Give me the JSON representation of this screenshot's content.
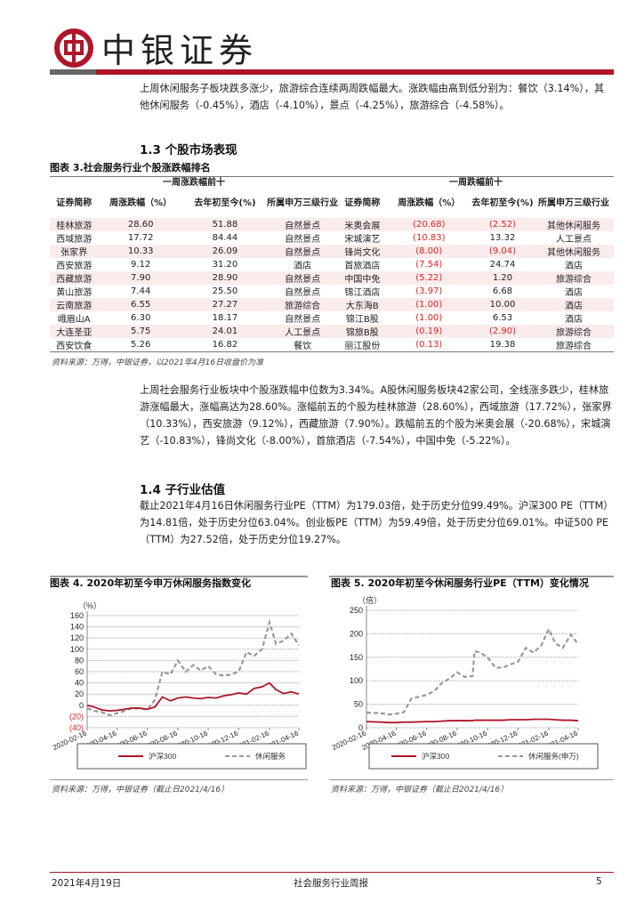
{
  "header": {
    "brand": "中银证券",
    "accent": "#b0162a"
  },
  "intro": "上周休闲服务子板块跌多涨少，旅游综合连续两周跌幅最大。涨跌幅由高到低分别为：餐饮（3.14%），其他休闲服务（-0.45%），酒店（-4.10%），景点（-4.25%），旅游综合（-4.58%）。",
  "section13": "1.3 个股市场表现",
  "table": {
    "caption": "图表 3.社会服务行业个股涨跌幅排名",
    "left_title": "一周涨跌幅前十",
    "right_title": "一周跌幅前十",
    "headers": [
      "证券简称",
      "周涨跌幅（%）",
      "去年初至今(%)",
      "所属申万三级行业"
    ],
    "left_rows": [
      [
        "桂林旅游",
        "28.60",
        "51.88",
        "自然景点"
      ],
      [
        "西域旅游",
        "17.72",
        "84.44",
        "自然景点"
      ],
      [
        "张家界",
        "10.33",
        "26.09",
        "自然景点"
      ],
      [
        "西安旅游",
        "9.12",
        "31.20",
        "酒店"
      ],
      [
        "西藏旅游",
        "7.90",
        "28.90",
        "自然景点"
      ],
      [
        "黄山旅游",
        "7.44",
        "25.50",
        "自然景点"
      ],
      [
        "云南旅游",
        "6.55",
        "27.27",
        "旅游综合"
      ],
      [
        "峨眉山A",
        "6.30",
        "18.17",
        "自然景点"
      ],
      [
        "大连圣亚",
        "5.75",
        "24.01",
        "人工景点"
      ],
      [
        "西安饮食",
        "5.26",
        "16.82",
        "餐饮"
      ]
    ],
    "right_rows": [
      [
        "米奥会展",
        "(20.68)",
        "(2.52)",
        "其他休闲服务"
      ],
      [
        "宋城演艺",
        "(10.83)",
        "13.32",
        "人工景点"
      ],
      [
        "锋尚文化",
        "(8.00)",
        "(9.04)",
        "其他休闲服务"
      ],
      [
        "首旅酒店",
        "(7.54)",
        "24.74",
        "酒店"
      ],
      [
        "中国中免",
        "(5.22)",
        "1.20",
        "旅游综合"
      ],
      [
        "锦江酒店",
        "(3.97)",
        "6.68",
        "酒店"
      ],
      [
        "大东海B",
        "(1.00)",
        "10.00",
        "酒店"
      ],
      [
        "锦江B股",
        "(1.00)",
        "6.53",
        "酒店"
      ],
      [
        "锦旅B股",
        "(0.19)",
        "(2.90)",
        "旅游综合"
      ],
      [
        "丽江股份",
        "(0.13)",
        "19.38",
        "旅游综合"
      ]
    ],
    "source": "资料来源：万得，中银证券，以2021年4月16日收盘价为准"
  },
  "para2": "上周社会服务行业板块中个股涨跌幅中位数为3.34%。A股休闲服务板块42家公司，全线涨多跌少，桂林旅游涨幅最大，涨幅高达为28.60%。涨幅前五的个股为桂林旅游（28.60%），西域旅游（17.72%），张家界（10.33%），西安旅游（9.12%），西藏旅游（7.90%）。跌幅前五的个股为米奥会展（-20.68%），宋城演艺（-10.83%），锋尚文化（-8.00%），首旅酒店（-7.54%），中国中免（-5.22%）。",
  "section14": "1.4 子行业估值",
  "para3": "截止2021年4月16日休闲服务行业PE（TTM）为179.03倍，处于历史分位99.49%。沪深300 PE（TTM）为14.81倍，处于历史分位63.04%。创业板PE（TTM）为59.49倍，处于历史分位69.01%。中证500 PE（TTM）为27.52倍，处于历史分位19.27%。",
  "chart_data": [
    {
      "type": "line",
      "caption": "图表 4. 2020年初至今申万休闲服务指数变化",
      "unit": "（%）",
      "ylim": [
        -40,
        160
      ],
      "yticks": [
        160,
        140,
        120,
        100,
        80,
        60,
        40,
        20,
        0,
        -20,
        -40
      ],
      "ytick_labels": [
        "160",
        "140",
        "120",
        "100",
        "80",
        "60",
        "40",
        "20",
        "0",
        "(20)",
        "(40)"
      ],
      "xticks": [
        "2020-02-16",
        "2020-04-16",
        "2020-06-16",
        "2020-08-16",
        "2020-10-16",
        "2020-12-16",
        "2021-02-16",
        "2021-04-16"
      ],
      "grid": true,
      "legend": "bottom",
      "x": [
        "2020-02-16",
        "2020-03-01",
        "2020-03-16",
        "2020-04-01",
        "2020-04-16",
        "2020-05-01",
        "2020-05-16",
        "2020-06-01",
        "2020-06-16",
        "2020-07-01",
        "2020-07-16",
        "2020-08-01",
        "2020-08-16",
        "2020-09-01",
        "2020-09-16",
        "2020-10-01",
        "2020-10-16",
        "2020-11-01",
        "2020-11-16",
        "2020-12-01",
        "2020-12-16",
        "2021-01-01",
        "2021-01-16",
        "2021-02-01",
        "2021-02-16",
        "2021-03-01",
        "2021-03-16",
        "2021-04-01",
        "2021-04-16"
      ],
      "series": [
        {
          "name": "沪深300",
          "color": "#b0162a",
          "style": "solid",
          "values": [
            0,
            -3,
            -8,
            -10,
            -9,
            -7,
            -5,
            -5,
            -7,
            -3,
            15,
            8,
            13,
            15,
            13,
            12,
            14,
            13,
            17,
            19,
            22,
            20,
            30,
            33,
            40,
            28,
            21,
            24,
            20
          ]
        },
        {
          "name": "休闲服务",
          "color": "#999999",
          "style": "dashed",
          "values": [
            -5,
            -10,
            -12,
            -18,
            -14,
            -10,
            -5,
            -6,
            -8,
            10,
            60,
            55,
            80,
            60,
            72,
            62,
            70,
            55,
            53,
            55,
            60,
            95,
            88,
            100,
            148,
            110,
            115,
            128,
            107
          ]
        }
      ],
      "source": "资料来源：万得，中银证券（截止日2021/4/16）"
    },
    {
      "type": "line",
      "caption": "图表 5. 2020年初至今休闲服务行业PE（TTM）变化情况",
      "unit": "（倍）",
      "ylim": [
        0,
        250
      ],
      "yticks": [
        250,
        200,
        150,
        100,
        50,
        0
      ],
      "ytick_labels": [
        "250",
        "200",
        "150",
        "100",
        "50",
        "0"
      ],
      "xticks": [
        "2020-02-16",
        "2020-04-16",
        "2020-06-16",
        "2020-08-16",
        "2020-10-16",
        "2020-12-16",
        "2021-02-16",
        "2021-04-16"
      ],
      "grid": true,
      "legend": "bottom",
      "x": [
        "2020-02-16",
        "2020-03-16",
        "2020-04-01",
        "2020-04-16",
        "2020-05-01",
        "2020-05-16",
        "2020-06-16",
        "2020-07-01",
        "2020-07-16",
        "2020-08-01",
        "2020-08-16",
        "2020-09-01",
        "2020-09-16",
        "2020-09-20",
        "2020-10-01",
        "2020-10-16",
        "2020-11-01",
        "2020-11-16",
        "2020-12-01",
        "2020-12-16",
        "2021-01-01",
        "2021-01-16",
        "2021-02-01",
        "2021-02-16",
        "2021-03-01",
        "2021-03-16",
        "2021-04-01",
        "2021-04-16"
      ],
      "series": [
        {
          "name": "沪深300",
          "color": "#b0162a",
          "style": "solid",
          "values": [
            13,
            12,
            11,
            11,
            12,
            12,
            13,
            13,
            14,
            15,
            15,
            15,
            15,
            16,
            16,
            16,
            16,
            16,
            17,
            17,
            17,
            18,
            18,
            18,
            17,
            16,
            16,
            15
          ]
        },
        {
          "name": "休闲服务(申万)",
          "color": "#999999",
          "style": "dashed",
          "values": [
            32,
            31,
            28,
            30,
            33,
            62,
            70,
            78,
            95,
            105,
            118,
            108,
            110,
            163,
            160,
            150,
            128,
            128,
            135,
            140,
            170,
            160,
            175,
            210,
            180,
            170,
            198,
            178
          ]
        }
      ],
      "source": "资料来源：万得，中银证券（截止日2021/4/16）"
    }
  ],
  "footer": {
    "date": "2021年4月19日",
    "title": "社会服务行业周报",
    "page": "5"
  }
}
